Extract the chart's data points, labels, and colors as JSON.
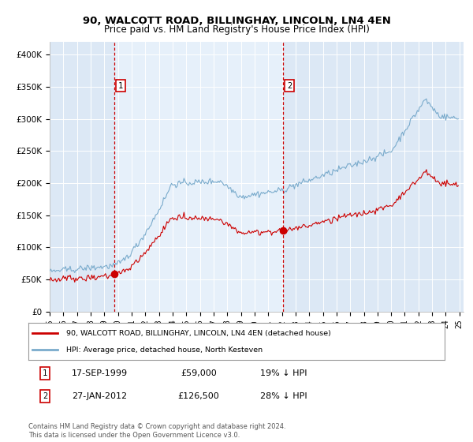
{
  "title": "90, WALCOTT ROAD, BILLINGHAY, LINCOLN, LN4 4EN",
  "subtitle": "Price paid vs. HM Land Registry's House Price Index (HPI)",
  "red_label": "90, WALCOTT ROAD, BILLINGHAY, LINCOLN, LN4 4EN (detached house)",
  "blue_label": "HPI: Average price, detached house, North Kesteven",
  "annotation1_date": "17-SEP-1999",
  "annotation1_price": "£59,000",
  "annotation1_hpi": "19% ↓ HPI",
  "annotation2_date": "27-JAN-2012",
  "annotation2_price": "£126,500",
  "annotation2_hpi": "28% ↓ HPI",
  "footnote": "Contains HM Land Registry data © Crown copyright and database right 2024.\nThis data is licensed under the Open Government Licence v3.0.",
  "ylim": [
    0,
    420000
  ],
  "yticks": [
    0,
    50000,
    100000,
    150000,
    200000,
    250000,
    300000,
    350000,
    400000
  ],
  "ytick_labels": [
    "£0",
    "£50K",
    "£100K",
    "£150K",
    "£200K",
    "£250K",
    "£300K",
    "£350K",
    "£400K"
  ],
  "fig_bg": "#ffffff",
  "plot_bg": "#dce8f5",
  "shade_bg": "#e6f0fa",
  "red_color": "#cc0000",
  "blue_color": "#7aabcc",
  "marker1_x": 1999.72,
  "marker1_y": 59000,
  "marker2_x": 2012.07,
  "marker2_y": 126500,
  "vline1_x": 1999.72,
  "vline2_x": 2012.07,
  "xtick_years": [
    1995,
    1996,
    1997,
    1998,
    1999,
    2000,
    2001,
    2002,
    2003,
    2004,
    2005,
    2006,
    2007,
    2008,
    2009,
    2010,
    2011,
    2012,
    2013,
    2014,
    2015,
    2016,
    2017,
    2018,
    2019,
    2020,
    2021,
    2022,
    2023,
    2024,
    2025
  ]
}
